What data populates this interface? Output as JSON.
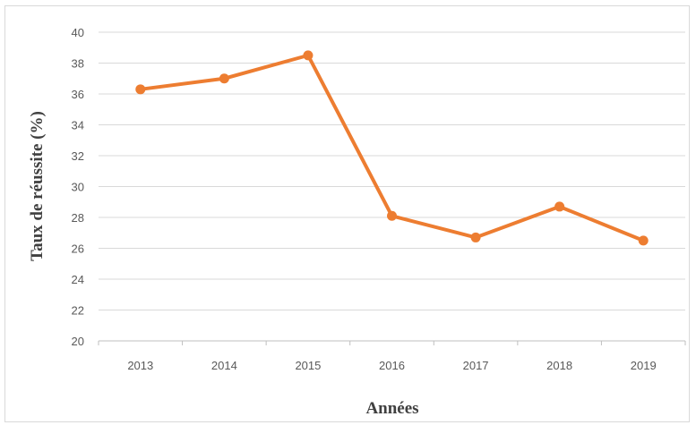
{
  "chart_data": {
    "type": "line",
    "title": "",
    "xlabel": "Années",
    "ylabel": "Taux de réussite (%)",
    "categories": [
      "2013",
      "2014",
      "2015",
      "2016",
      "2017",
      "2018",
      "2019"
    ],
    "series": [
      {
        "values": [
          36.3,
          37.0,
          38.5,
          28.1,
          26.7,
          28.7,
          26.5
        ]
      }
    ],
    "ylim": [
      20,
      40
    ],
    "yticks": [
      "20",
      "22",
      "24",
      "26",
      "28",
      "30",
      "32",
      "34",
      "36",
      "38",
      "40"
    ],
    "grid": true,
    "legend": "none",
    "colors": {
      "line": "#ED7D31",
      "grid": "#d9d9d9",
      "axis": "#bfbfbf"
    }
  }
}
